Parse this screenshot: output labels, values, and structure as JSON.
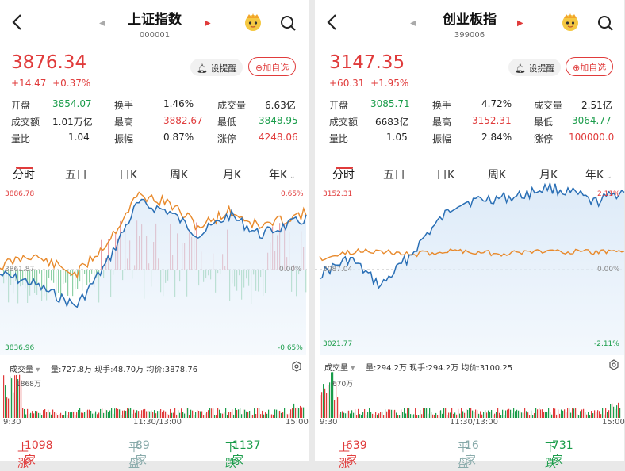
{
  "left": {
    "title": "上证指数",
    "code": "000001",
    "price": "3876.34",
    "change": "+14.47",
    "change_pct": "+0.37%",
    "remind_label": "设提醒",
    "add_label": "加自选",
    "stats": [
      [
        {
          "l": "开盘",
          "v": "3854.07",
          "c": "g"
        },
        {
          "l": "换手",
          "v": "1.46%",
          "c": "k"
        },
        {
          "l": "成交量",
          "v": "6.63亿",
          "c": "k"
        }
      ],
      [
        {
          "l": "成交额",
          "v": "1.01万亿",
          "c": "k"
        },
        {
          "l": "最高",
          "v": "3882.67",
          "c": "r"
        },
        {
          "l": "最低",
          "v": "3848.95",
          "c": "g"
        }
      ],
      [
        {
          "l": "量比",
          "v": "1.04",
          "c": "k"
        },
        {
          "l": "振幅",
          "v": "0.87%",
          "c": "k"
        },
        {
          "l": "涨停",
          "v": "4248.06",
          "c": "r"
        }
      ]
    ],
    "tabs": [
      "分时",
      "五日",
      "日K",
      "周K",
      "月K",
      "年K"
    ],
    "chart": {
      "top_price": "3886.78",
      "bottom_price": "3836.96",
      "mid_price": "3861.87",
      "top_pct": "0.65%",
      "bottom_pct": "-0.65%",
      "mid_pct": "0.00%"
    },
    "vol_label": "成交量",
    "vol_info": "量:727.8万  现手:48.70万  均价:3878.76",
    "vol_max": "1868万",
    "times": [
      "9:30",
      "11:30/13:00",
      "15:00"
    ],
    "up_label": "上涨",
    "up_count": "1098家",
    "flat_label": "平盘",
    "flat_count": "89家",
    "down_label": "下跌",
    "down_count": "1137家"
  },
  "right": {
    "title": "创业板指",
    "code": "399006",
    "price": "3147.35",
    "change": "+60.31",
    "change_pct": "+1.95%",
    "remind_label": "设提醒",
    "add_label": "加自选",
    "stats": [
      [
        {
          "l": "开盘",
          "v": "3085.71",
          "c": "g"
        },
        {
          "l": "换手",
          "v": "4.72%",
          "c": "k"
        },
        {
          "l": "成交量",
          "v": "2.51亿",
          "c": "k"
        }
      ],
      [
        {
          "l": "成交额",
          "v": "6683亿",
          "c": "k"
        },
        {
          "l": "最高",
          "v": "3152.31",
          "c": "r"
        },
        {
          "l": "最低",
          "v": "3064.77",
          "c": "g"
        }
      ],
      [
        {
          "l": "量比",
          "v": "1.05",
          "c": "k"
        },
        {
          "l": "振幅",
          "v": "2.84%",
          "c": "k"
        },
        {
          "l": "涨停",
          "v": "100000.0",
          "c": "r"
        }
      ]
    ],
    "tabs": [
      "分时",
      "五日",
      "日K",
      "周K",
      "月K",
      "年K"
    ],
    "chart": {
      "top_price": "3152.31",
      "bottom_price": "3021.77",
      "mid_price": "3087.04",
      "top_pct": "2.11%",
      "bottom_pct": "-2.11%",
      "mid_pct": "0.00%"
    },
    "vol_label": "成交量",
    "vol_info": "量:294.2万  现手:294.2万  均价:3100.25",
    "vol_max": "670万",
    "times": [
      "9:30",
      "11:30/13:00",
      "15:00"
    ],
    "up_label": "上涨",
    "up_count": "639家",
    "flat_label": "平盘",
    "flat_count": "16家",
    "down_label": "下跌",
    "down_count": "731家"
  },
  "colors": {
    "up": "#e03b3b",
    "down": "#1a9c4a",
    "price_line": "#2a6fb5",
    "avg_line": "#e8892b"
  }
}
